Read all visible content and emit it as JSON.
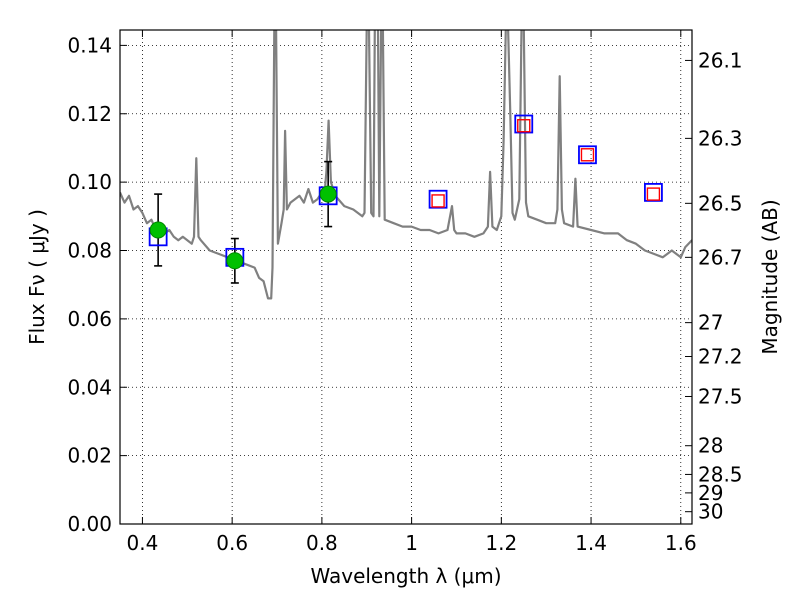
{
  "chart_data": {
    "type": "scatter",
    "xlabel": "Wavelength  λ (μm)",
    "ylabel": "Flux  Fν  ( μJy )",
    "y2label": "Magnitude (AB)",
    "xlim": [
      0.35,
      1.625
    ],
    "ylim": [
      0.0,
      0.1445
    ],
    "x_ticks": [
      0.4,
      0.6,
      0.8,
      1.0,
      1.2,
      1.4,
      1.6
    ],
    "x_tick_labels": [
      "0.4",
      "0.6",
      "0.8",
      "1",
      "1.2",
      "1.4",
      "1.6"
    ],
    "y_ticks": [
      0.0,
      0.02,
      0.04,
      0.06,
      0.08,
      0.1,
      0.12,
      0.14
    ],
    "y_tick_labels": [
      "0.00",
      "0.02",
      "0.04",
      "0.06",
      "0.08",
      "0.10",
      "0.12",
      "0.14"
    ],
    "y2_ticks": [
      {
        "label": "26.1",
        "flux": 0.1356
      },
      {
        "label": "26.3",
        "flux": 0.1128
      },
      {
        "label": "26.5",
        "flux": 0.0938
      },
      {
        "label": "26.7",
        "flux": 0.078
      },
      {
        "label": "27",
        "flux": 0.0589
      },
      {
        "label": "27.2",
        "flux": 0.049
      },
      {
        "label": "27.5",
        "flux": 0.0373
      },
      {
        "label": "28",
        "flux": 0.0229
      },
      {
        "label": "28.5",
        "flux": 0.0145
      },
      {
        "label": "29",
        "flux": 0.0091
      },
      {
        "label": "30",
        "flux": 0.0036
      }
    ],
    "grid": true,
    "grid_style": "dotted",
    "series": [
      {
        "kind": "model_spectrum",
        "color": "#808080",
        "points": [
          [
            0.35,
            0.097
          ],
          [
            0.36,
            0.094
          ],
          [
            0.37,
            0.096
          ],
          [
            0.38,
            0.092
          ],
          [
            0.39,
            0.093
          ],
          [
            0.4,
            0.091
          ],
          [
            0.41,
            0.088
          ],
          [
            0.42,
            0.089
          ],
          [
            0.43,
            0.086
          ],
          [
            0.44,
            0.087
          ],
          [
            0.45,
            0.085
          ],
          [
            0.46,
            0.086
          ],
          [
            0.47,
            0.084
          ],
          [
            0.48,
            0.083
          ],
          [
            0.49,
            0.084
          ],
          [
            0.5,
            0.083
          ],
          [
            0.51,
            0.082
          ],
          [
            0.515,
            0.084
          ],
          [
            0.52,
            0.107
          ],
          [
            0.525,
            0.084
          ],
          [
            0.53,
            0.083
          ],
          [
            0.55,
            0.08
          ],
          [
            0.57,
            0.079
          ],
          [
            0.59,
            0.078
          ],
          [
            0.61,
            0.077
          ],
          [
            0.63,
            0.076
          ],
          [
            0.65,
            0.075
          ],
          [
            0.66,
            0.072
          ],
          [
            0.67,
            0.071
          ],
          [
            0.68,
            0.066
          ],
          [
            0.687,
            0.066
          ],
          [
            0.69,
            0.075
          ],
          [
            0.694,
            0.145
          ],
          [
            0.698,
            0.145
          ],
          [
            0.702,
            0.082
          ],
          [
            0.71,
            0.088
          ],
          [
            0.715,
            0.092
          ],
          [
            0.718,
            0.115
          ],
          [
            0.722,
            0.092
          ],
          [
            0.73,
            0.094
          ],
          [
            0.75,
            0.096
          ],
          [
            0.76,
            0.094
          ],
          [
            0.77,
            0.098
          ],
          [
            0.78,
            0.094
          ],
          [
            0.79,
            0.095
          ],
          [
            0.8,
            0.097
          ],
          [
            0.805,
            0.095
          ],
          [
            0.81,
            0.103
          ],
          [
            0.815,
            0.118
          ],
          [
            0.82,
            0.1
          ],
          [
            0.83,
            0.096
          ],
          [
            0.85,
            0.093
          ],
          [
            0.87,
            0.092
          ],
          [
            0.89,
            0.09
          ],
          [
            0.895,
            0.091
          ],
          [
            0.9,
            0.145
          ],
          [
            0.905,
            0.145
          ],
          [
            0.91,
            0.091
          ],
          [
            0.915,
            0.09
          ],
          [
            0.918,
            0.145
          ],
          [
            0.925,
            0.145
          ],
          [
            0.928,
            0.09
          ],
          [
            0.932,
            0.145
          ],
          [
            0.936,
            0.145
          ],
          [
            0.94,
            0.089
          ],
          [
            0.96,
            0.088
          ],
          [
            0.98,
            0.087
          ],
          [
            1.0,
            0.087
          ],
          [
            1.02,
            0.086
          ],
          [
            1.04,
            0.086
          ],
          [
            1.06,
            0.085
          ],
          [
            1.08,
            0.086
          ],
          [
            1.09,
            0.093
          ],
          [
            1.095,
            0.086
          ],
          [
            1.1,
            0.085
          ],
          [
            1.12,
            0.085
          ],
          [
            1.14,
            0.084
          ],
          [
            1.16,
            0.085
          ],
          [
            1.17,
            0.087
          ],
          [
            1.175,
            0.103
          ],
          [
            1.18,
            0.087
          ],
          [
            1.19,
            0.086
          ],
          [
            1.2,
            0.09
          ],
          [
            1.205,
            0.112
          ],
          [
            1.21,
            0.145
          ],
          [
            1.215,
            0.145
          ],
          [
            1.22,
            0.12
          ],
          [
            1.225,
            0.091
          ],
          [
            1.23,
            0.089
          ],
          [
            1.24,
            0.095
          ],
          [
            1.245,
            0.145
          ],
          [
            1.25,
            0.145
          ],
          [
            1.255,
            0.094
          ],
          [
            1.26,
            0.09
          ],
          [
            1.28,
            0.089
          ],
          [
            1.3,
            0.088
          ],
          [
            1.32,
            0.088
          ],
          [
            1.325,
            0.092
          ],
          [
            1.33,
            0.131
          ],
          [
            1.335,
            0.092
          ],
          [
            1.34,
            0.088
          ],
          [
            1.36,
            0.087
          ],
          [
            1.365,
            0.101
          ],
          [
            1.37,
            0.087
          ],
          [
            1.4,
            0.086
          ],
          [
            1.43,
            0.085
          ],
          [
            1.46,
            0.085
          ],
          [
            1.48,
            0.083
          ],
          [
            1.5,
            0.082
          ],
          [
            1.52,
            0.08
          ],
          [
            1.54,
            0.079
          ],
          [
            1.56,
            0.078
          ],
          [
            1.58,
            0.08
          ],
          [
            1.6,
            0.078
          ],
          [
            1.61,
            0.081
          ],
          [
            1.625,
            0.083
          ]
        ]
      },
      {
        "kind": "observed_photometry",
        "marker": "circle",
        "color": "#00c000",
        "errorbar_color": "#000000",
        "points": [
          {
            "x": 0.435,
            "y": 0.086,
            "yerr_low": 0.0755,
            "yerr_high": 0.0965
          },
          {
            "x": 0.606,
            "y": 0.077,
            "yerr_low": 0.0705,
            "yerr_high": 0.0835
          },
          {
            "x": 0.814,
            "y": 0.0965,
            "yerr_low": 0.087,
            "yerr_high": 0.106
          }
        ]
      },
      {
        "kind": "model_photometry",
        "marker": "square",
        "color": "#0000ff",
        "points": [
          {
            "x": 0.435,
            "y": 0.084
          },
          {
            "x": 0.606,
            "y": 0.078
          },
          {
            "x": 0.814,
            "y": 0.096
          },
          {
            "x": 1.059,
            "y": 0.095
          },
          {
            "x": 1.25,
            "y": 0.117
          },
          {
            "x": 1.392,
            "y": 0.108
          },
          {
            "x": 1.539,
            "y": 0.097
          }
        ]
      },
      {
        "kind": "predicted_photometry",
        "marker": "square",
        "color": "#ff0000",
        "points": [
          {
            "x": 1.059,
            "y": 0.0945
          },
          {
            "x": 1.25,
            "y": 0.1165
          },
          {
            "x": 1.392,
            "y": 0.108
          },
          {
            "x": 1.539,
            "y": 0.0965
          }
        ]
      }
    ]
  }
}
